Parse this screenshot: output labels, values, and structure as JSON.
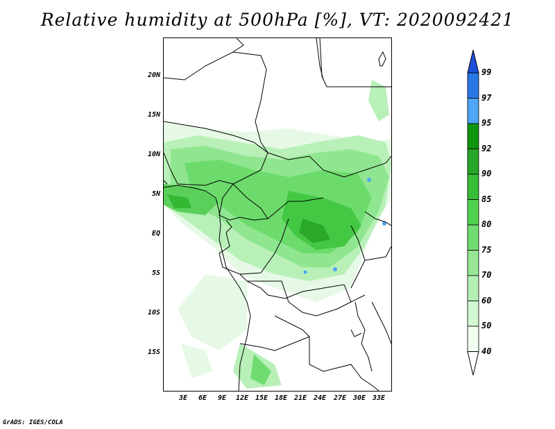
{
  "title": "Relative humidity at 500hPa [%], VT: 2020092421",
  "credit": "GrADS: IGES/COLA",
  "map": {
    "lat_labels": [
      "20N",
      "15N",
      "10N",
      "5N",
      "EQ",
      "5S",
      "10S",
      "15S"
    ],
    "lon_labels": [
      "3E",
      "6E",
      "9E",
      "12E",
      "15E",
      "18E",
      "21E",
      "24E",
      "27E",
      "30E",
      "33E"
    ]
  },
  "colorbar": {
    "labels": [
      "99",
      "97",
      "95",
      "92",
      "90",
      "85",
      "80",
      "75",
      "70",
      "60",
      "50",
      "40"
    ],
    "colors": [
      "#1e50d8",
      "#2a78e6",
      "#50a5f5",
      "#0f960f",
      "#28a628",
      "#37bd37",
      "#50d250",
      "#70dc70",
      "#96e696",
      "#b4f0b4",
      "#d2f8d2",
      "#f0fff0"
    ],
    "unit": "%"
  }
}
